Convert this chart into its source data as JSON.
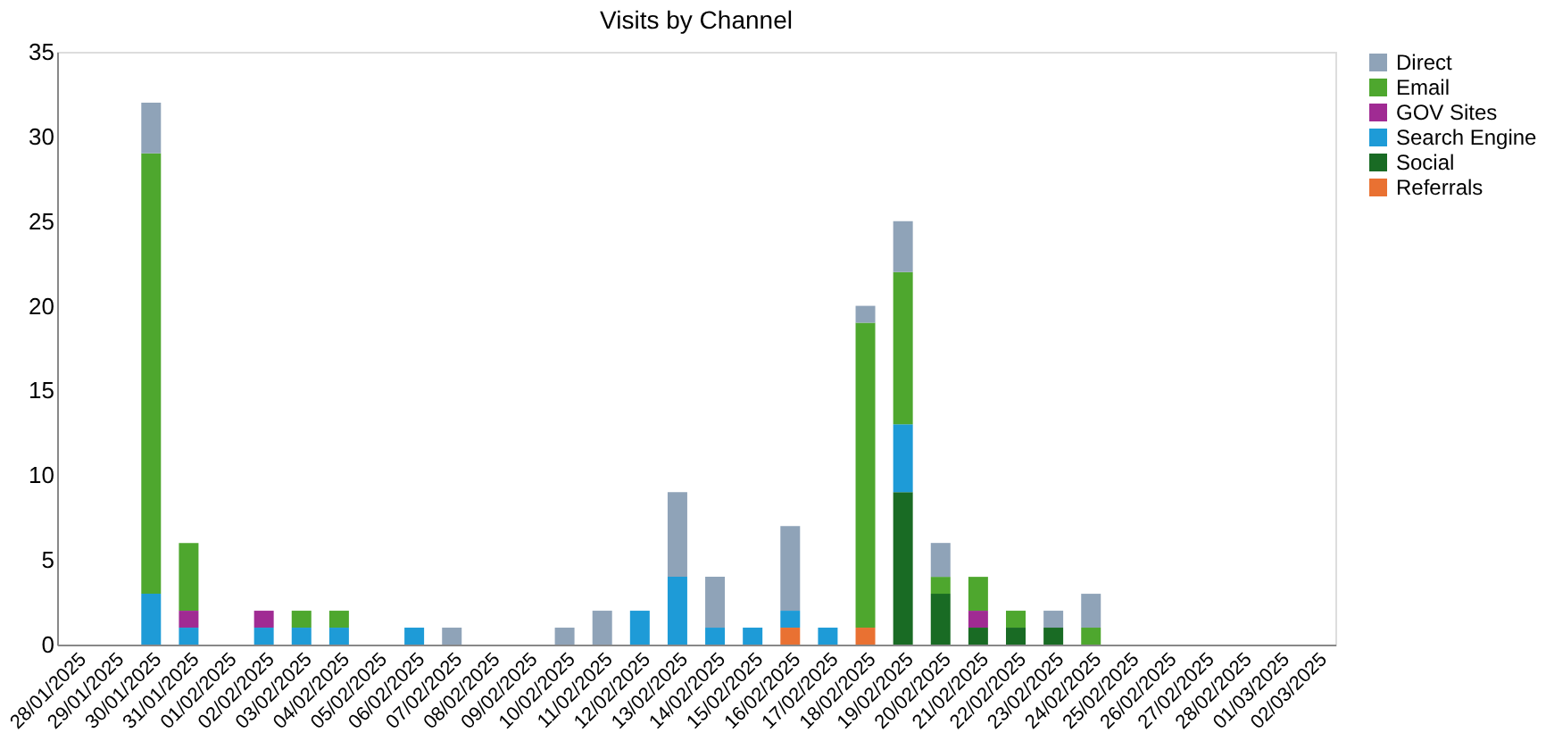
{
  "chart_data": {
    "type": "bar",
    "title": "Visits by Channel",
    "stacked": true,
    "legend": "right",
    "grid": false,
    "categories": [
      "28/01/2025",
      "29/01/2025",
      "30/01/2025",
      "31/01/2025",
      "01/02/2025",
      "02/02/2025",
      "03/02/2025",
      "04/02/2025",
      "05/02/2025",
      "06/02/2025",
      "07/02/2025",
      "08/02/2025",
      "09/02/2025",
      "10/02/2025",
      "11/02/2025",
      "12/02/2025",
      "13/02/2025",
      "14/02/2025",
      "15/02/2025",
      "16/02/2025",
      "17/02/2025",
      "18/02/2025",
      "19/02/2025",
      "20/02/2025",
      "21/02/2025",
      "22/02/2025",
      "23/02/2025",
      "24/02/2025",
      "25/02/2025",
      "26/02/2025",
      "27/02/2025",
      "28/02/2025",
      "01/03/2025",
      "02/03/2025"
    ],
    "ylim": [
      0,
      35
    ],
    "yticks": [
      0,
      5,
      10,
      15,
      20,
      25,
      30,
      35
    ],
    "series": [
      {
        "name": "Referrals",
        "color": "#e97132",
        "values": [
          null,
          null,
          null,
          null,
          null,
          null,
          null,
          null,
          null,
          null,
          null,
          null,
          null,
          null,
          null,
          null,
          null,
          null,
          null,
          1,
          null,
          1,
          null,
          null,
          null,
          null,
          null,
          null,
          null,
          null,
          null,
          null,
          null,
          null
        ]
      },
      {
        "name": "Social",
        "color": "#196b24",
        "values": [
          null,
          null,
          null,
          null,
          null,
          null,
          null,
          null,
          null,
          null,
          null,
          null,
          null,
          null,
          null,
          null,
          null,
          null,
          null,
          null,
          null,
          null,
          9,
          3,
          1,
          1,
          1,
          null,
          null,
          null,
          null,
          null,
          null,
          null
        ]
      },
      {
        "name": "Search Engine",
        "color": "#1e9bd7",
        "values": [
          null,
          null,
          3,
          1,
          null,
          1,
          1,
          1,
          null,
          1,
          null,
          null,
          null,
          null,
          null,
          2,
          4,
          1,
          1,
          1,
          1,
          null,
          4,
          null,
          null,
          null,
          null,
          null,
          null,
          null,
          null,
          null,
          null,
          null
        ]
      },
      {
        "name": "GOV Sites",
        "color": "#a02b93",
        "values": [
          null,
          null,
          null,
          1,
          null,
          1,
          null,
          null,
          null,
          null,
          null,
          null,
          null,
          null,
          null,
          null,
          null,
          null,
          null,
          null,
          null,
          null,
          null,
          null,
          1,
          null,
          null,
          null,
          null,
          null,
          null,
          null,
          null,
          null
        ]
      },
      {
        "name": "Email",
        "color": "#4ea72e",
        "values": [
          null,
          null,
          26,
          4,
          null,
          null,
          1,
          1,
          null,
          null,
          null,
          null,
          null,
          null,
          null,
          null,
          null,
          null,
          null,
          null,
          null,
          18,
          9,
          1,
          2,
          1,
          null,
          1,
          null,
          null,
          null,
          null,
          null,
          null
        ]
      },
      {
        "name": "Direct",
        "color": "#8fa3b8",
        "values": [
          null,
          null,
          3,
          null,
          null,
          null,
          null,
          null,
          null,
          null,
          1,
          null,
          null,
          1,
          2,
          null,
          5,
          3,
          null,
          5,
          null,
          1,
          3,
          2,
          null,
          null,
          1,
          2,
          null,
          null,
          null,
          null,
          null,
          null
        ]
      }
    ]
  }
}
